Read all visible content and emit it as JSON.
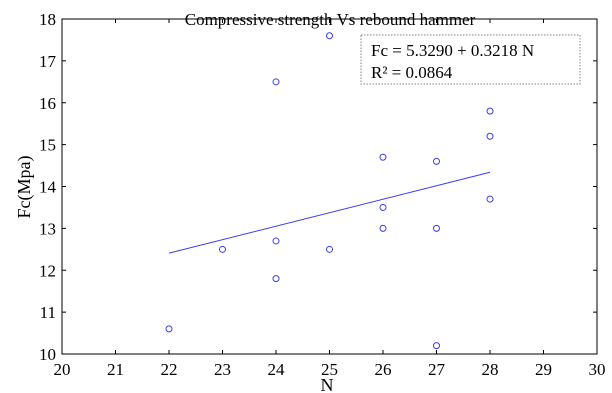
{
  "chart_data": {
    "type": "scatter",
    "title": "Compressive strength Vs rebound hammer",
    "xlabel": "N",
    "ylabel": "Fc(Mpa)",
    "xlim": [
      20,
      30
    ],
    "ylim": [
      10,
      18
    ],
    "xticks": [
      "20",
      "21",
      "22",
      "23",
      "24",
      "25",
      "26",
      "27",
      "28",
      "29",
      "30"
    ],
    "yticks": [
      "10",
      "11",
      "12",
      "13",
      "14",
      "15",
      "16",
      "17",
      "18"
    ],
    "grid": false,
    "legend_position": "top-right",
    "colors": {
      "points": "#3b3bf0",
      "fit": "#3b3bf0",
      "axes": "#000000",
      "legend_border": "#808080"
    },
    "points": [
      {
        "x": 22,
        "y": 10.6
      },
      {
        "x": 23,
        "y": 12.5
      },
      {
        "x": 24,
        "y": 16.5
      },
      {
        "x": 24,
        "y": 12.7
      },
      {
        "x": 24,
        "y": 11.8
      },
      {
        "x": 25,
        "y": 17.6
      },
      {
        "x": 25,
        "y": 12.5
      },
      {
        "x": 26,
        "y": 14.7
      },
      {
        "x": 26,
        "y": 13.5
      },
      {
        "x": 26,
        "y": 13.0
      },
      {
        "x": 27,
        "y": 14.6
      },
      {
        "x": 27,
        "y": 13.0
      },
      {
        "x": 27,
        "y": 10.2
      },
      {
        "x": 28,
        "y": 15.8
      },
      {
        "x": 28,
        "y": 15.2
      },
      {
        "x": 28,
        "y": 13.7
      }
    ],
    "fit_line": {
      "intercept": 5.329,
      "slope": 0.3218,
      "x_range": [
        22,
        28
      ]
    },
    "annotation": {
      "line1": "Fc = 5.3290 + 0.3218 N",
      "line2": "R² = 0.0864"
    }
  }
}
